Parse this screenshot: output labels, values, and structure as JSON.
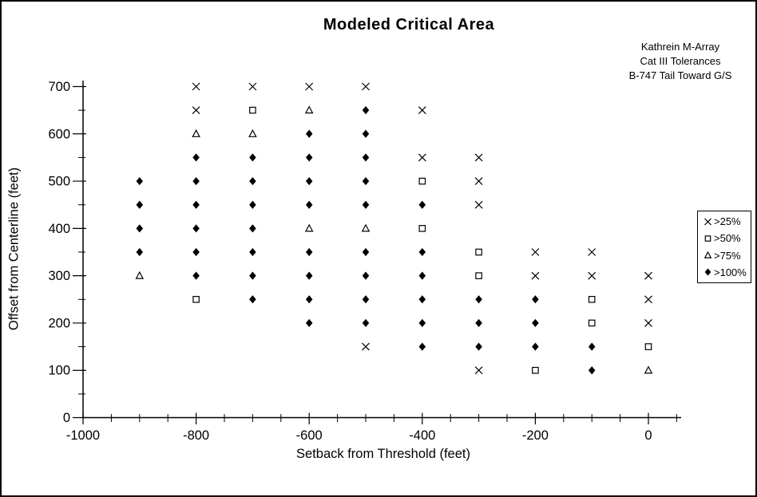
{
  "annotation": {
    "lines": [
      "Kathrein M-Array",
      "Cat III Tolerances",
      "B-747 Tail Toward G/S"
    ]
  },
  "axes": {
    "x": {
      "title": "Setback from Threshold (feet)",
      "tick_labels": [
        "-1000",
        "-800",
        "-600",
        "-400",
        "-200",
        "0"
      ]
    },
    "y": {
      "title": "Offset from Centerline (feet)",
      "tick_labels": [
        "0",
        "100",
        "200",
        "300",
        "400",
        "500",
        "600",
        "700"
      ]
    }
  },
  "colors": {
    "foreground": "#000000",
    "background": "#ffffff"
  },
  "chart_data": {
    "type": "scatter",
    "title": "Modeled Critical Area",
    "xlabel": "Setback from Threshold (feet)",
    "ylabel": "Offset from Centerline (feet)",
    "xlim": [
      -1000,
      50
    ],
    "ylim": [
      0,
      700
    ],
    "x_major_ticks": [
      -1000,
      -800,
      -600,
      -400,
      -200,
      0
    ],
    "x_minor_step": 50,
    "y_major_ticks": [
      0,
      100,
      200,
      300,
      400,
      500,
      600,
      700
    ],
    "y_minor_step": 50,
    "grid": false,
    "legend_position": "right",
    "series": [
      {
        "name": ">25%",
        "marker": "cross",
        "points": [
          [
            -800,
            700
          ],
          [
            -800,
            650
          ],
          [
            -700,
            700
          ],
          [
            -600,
            700
          ],
          [
            -500,
            700
          ],
          [
            -500,
            150
          ],
          [
            -400,
            650
          ],
          [
            -400,
            550
          ],
          [
            -300,
            550
          ],
          [
            -300,
            500
          ],
          [
            -300,
            450
          ],
          [
            -300,
            100
          ],
          [
            -200,
            350
          ],
          [
            -200,
            300
          ],
          [
            -100,
            350
          ],
          [
            -100,
            300
          ],
          [
            0,
            300
          ],
          [
            0,
            250
          ],
          [
            0,
            200
          ]
        ]
      },
      {
        "name": ">50%",
        "marker": "square",
        "points": [
          [
            -800,
            250
          ],
          [
            -700,
            650
          ],
          [
            -400,
            500
          ],
          [
            -400,
            400
          ],
          [
            -300,
            350
          ],
          [
            -300,
            300
          ],
          [
            -200,
            100
          ],
          [
            -100,
            250
          ],
          [
            -100,
            200
          ],
          [
            0,
            150
          ]
        ]
      },
      {
        "name": ">75%",
        "marker": "triangle",
        "points": [
          [
            -900,
            300
          ],
          [
            -800,
            600
          ],
          [
            -700,
            600
          ],
          [
            -600,
            650
          ],
          [
            -600,
            400
          ],
          [
            -500,
            400
          ],
          [
            0,
            100
          ]
        ]
      },
      {
        "name": ">100%",
        "marker": "diamond",
        "points": [
          [
            -900,
            500
          ],
          [
            -900,
            450
          ],
          [
            -900,
            400
          ],
          [
            -900,
            350
          ],
          [
            -800,
            550
          ],
          [
            -800,
            500
          ],
          [
            -800,
            450
          ],
          [
            -800,
            400
          ],
          [
            -800,
            350
          ],
          [
            -800,
            300
          ],
          [
            -700,
            550
          ],
          [
            -700,
            500
          ],
          [
            -700,
            450
          ],
          [
            -700,
            400
          ],
          [
            -700,
            350
          ],
          [
            -700,
            300
          ],
          [
            -700,
            250
          ],
          [
            -600,
            600
          ],
          [
            -600,
            550
          ],
          [
            -600,
            500
          ],
          [
            -600,
            450
          ],
          [
            -600,
            350
          ],
          [
            -600,
            300
          ],
          [
            -600,
            250
          ],
          [
            -600,
            200
          ],
          [
            -500,
            650
          ],
          [
            -500,
            600
          ],
          [
            -500,
            550
          ],
          [
            -500,
            500
          ],
          [
            -500,
            450
          ],
          [
            -500,
            350
          ],
          [
            -500,
            300
          ],
          [
            -500,
            250
          ],
          [
            -500,
            200
          ],
          [
            -400,
            450
          ],
          [
            -400,
            350
          ],
          [
            -400,
            300
          ],
          [
            -400,
            250
          ],
          [
            -400,
            200
          ],
          [
            -400,
            150
          ],
          [
            -300,
            250
          ],
          [
            -300,
            200
          ],
          [
            -300,
            150
          ],
          [
            -200,
            250
          ],
          [
            -200,
            200
          ],
          [
            -200,
            150
          ],
          [
            -100,
            150
          ],
          [
            -100,
            100
          ]
        ]
      }
    ]
  }
}
